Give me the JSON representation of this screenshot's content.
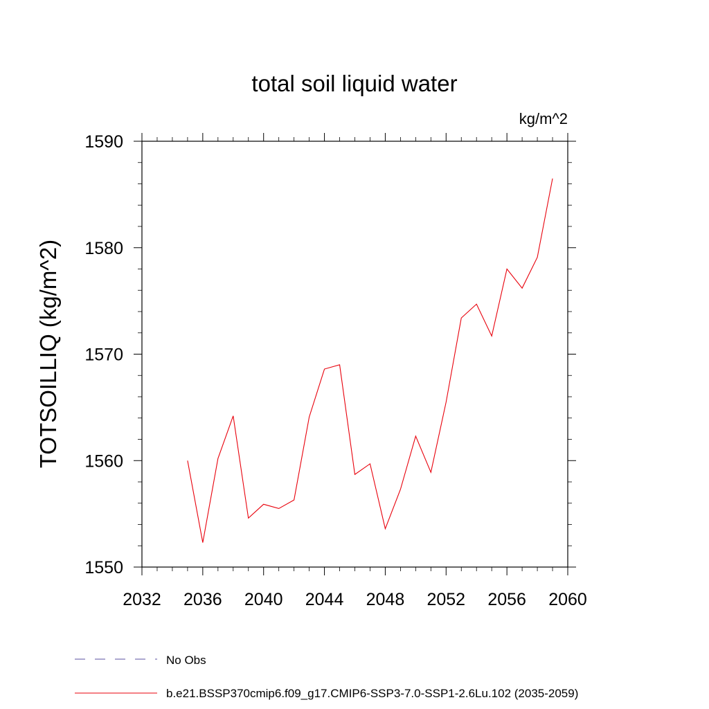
{
  "chart_data": {
    "type": "line",
    "title": "total soil liquid water",
    "units_label": "kg/m^2",
    "ylabel": "TOTSOILLIQ  (kg/m^2)",
    "xlabel": "",
    "xlim": [
      2032,
      2060
    ],
    "ylim": [
      1550,
      1590
    ],
    "x_ticks": [
      2032,
      2036,
      2040,
      2044,
      2048,
      2052,
      2056,
      2060
    ],
    "x_tick_labels": [
      "2032",
      "2036",
      "2040",
      "2044",
      "2048",
      "2052",
      "2056",
      "2060"
    ],
    "y_ticks": [
      1550,
      1560,
      1570,
      1580,
      1590
    ],
    "y_tick_labels": [
      "1550",
      "1560",
      "1570",
      "1580",
      "1590"
    ],
    "grid": false,
    "legend_position": "bottom",
    "legend": [
      {
        "label": "No Obs",
        "color": "#5a4fa0",
        "style": "dashed"
      },
      {
        "label": "b.e21.BSSP370cmip6.f09_g17.CMIP6-SSP3-7.0-SSP1-2.6Lu.102 (2035-2059)",
        "color": "#e8000b",
        "style": "solid"
      }
    ],
    "series": [
      {
        "name": "b.e21.BSSP370cmip6.f09_g17.CMIP6-SSP3-7.0-SSP1-2.6Lu.102 (2035-2059)",
        "color": "#e8000b",
        "x": [
          2035,
          2036,
          2037,
          2038,
          2039,
          2040,
          2041,
          2042,
          2043,
          2044,
          2045,
          2046,
          2047,
          2048,
          2049,
          2050,
          2051,
          2052,
          2053,
          2054,
          2055,
          2056,
          2057,
          2058,
          2059
        ],
        "values": [
          1560.0,
          1552.3,
          1560.2,
          1564.2,
          1554.6,
          1555.9,
          1555.5,
          1556.3,
          1564.1,
          1568.6,
          1569.0,
          1558.7,
          1559.7,
          1553.6,
          1557.3,
          1562.3,
          1558.9,
          1565.5,
          1573.4,
          1574.7,
          1571.7,
          1578.0,
          1576.2,
          1579.1,
          1586.5
        ]
      }
    ]
  }
}
